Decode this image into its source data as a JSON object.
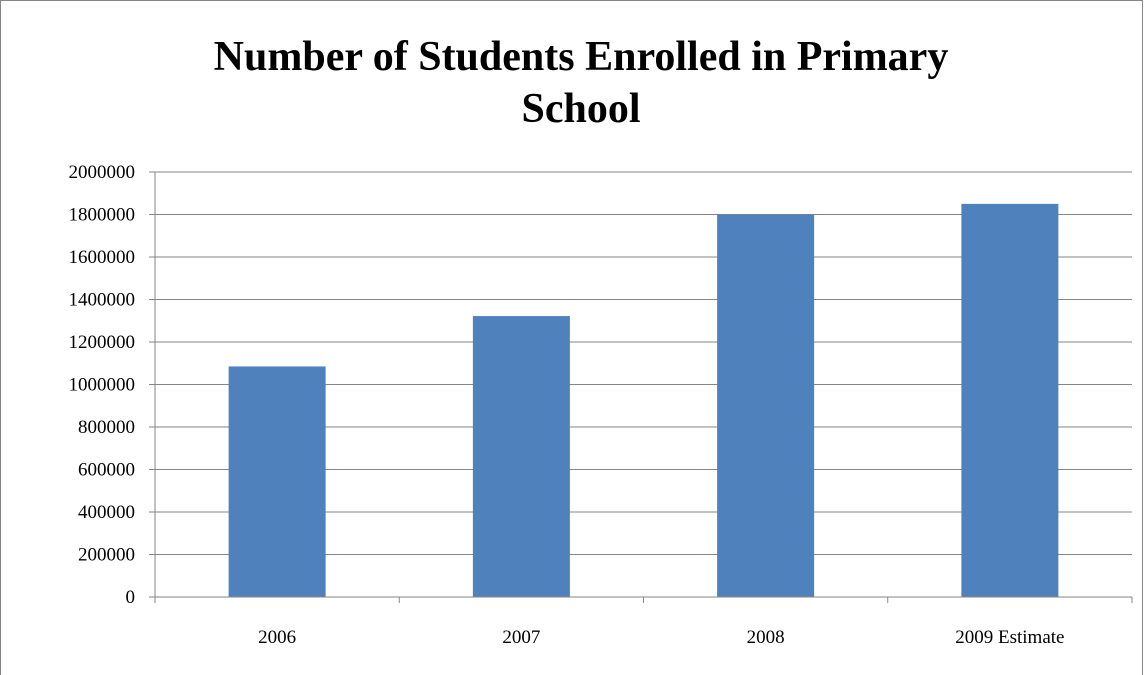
{
  "chart_data": {
    "type": "bar",
    "title_lines": [
      "Number of Students Enrolled in Primary",
      "School"
    ],
    "categories": [
      "2006",
      "2007",
      "2008",
      "2009 Estimate"
    ],
    "values": [
      1085000,
      1322000,
      1800000,
      1850000
    ],
    "xlabel": "",
    "ylabel": "",
    "ylim": [
      0,
      2000000
    ],
    "yticks": [
      "0",
      "200000",
      "400000",
      "600000",
      "800000",
      "1000000",
      "1200000",
      "1400000",
      "1600000",
      "1800000",
      "2000000"
    ],
    "grid": true,
    "legend": "none",
    "bar_color": "#4F81BD",
    "gridline_color": "#868686"
  }
}
